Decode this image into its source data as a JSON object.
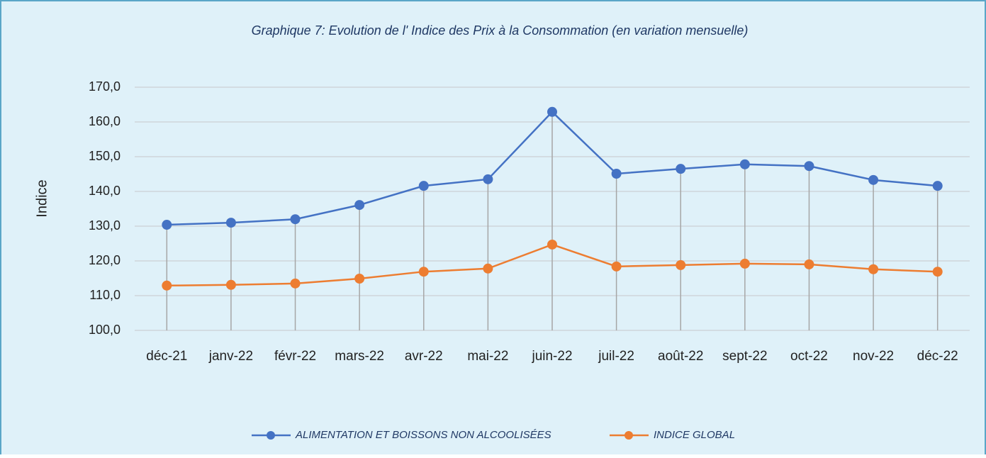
{
  "chart_data": {
    "type": "line",
    "title": "Graphique 7: Evolution de l' Indice des Prix à la Consommation (en variation mensuelle)",
    "y_label": "Indice",
    "categories": [
      "déc-21",
      "janv-22",
      "févr-22",
      "mars-22",
      "avr-22",
      "mai-22",
      "juin-22",
      "juil-22",
      "août-22",
      "sept-22",
      "oct-22",
      "nov-22",
      "déc-22"
    ],
    "series": [
      {
        "name": "ALIMENTATION ET BOISSONS NON ALCOOLISÉES",
        "color": "#4472c4",
        "values": [
          130.4,
          131.0,
          132.0,
          136.1,
          141.6,
          143.5,
          162.9,
          145.1,
          146.5,
          147.8,
          147.3,
          143.3,
          141.6
        ]
      },
      {
        "name": "INDICE GLOBAL",
        "color": "#ed7d31",
        "values": [
          112.9,
          113.1,
          113.5,
          114.9,
          116.9,
          117.8,
          124.7,
          118.4,
          118.8,
          119.2,
          119.0,
          117.6,
          116.9
        ]
      }
    ],
    "ylim": [
      100,
      170
    ],
    "yticks": [
      {
        "value": 100,
        "label": "100,0"
      },
      {
        "value": 110,
        "label": "110,0"
      },
      {
        "value": 120,
        "label": "120,0"
      },
      {
        "value": 130,
        "label": "130,0"
      },
      {
        "value": 140,
        "label": "140,0"
      },
      {
        "value": 150,
        "label": "150,0"
      },
      {
        "value": 160,
        "label": "160,0"
      },
      {
        "value": 170,
        "label": "170,0"
      }
    ],
    "grid": true,
    "drop_lines": true,
    "legend": "bottom"
  }
}
